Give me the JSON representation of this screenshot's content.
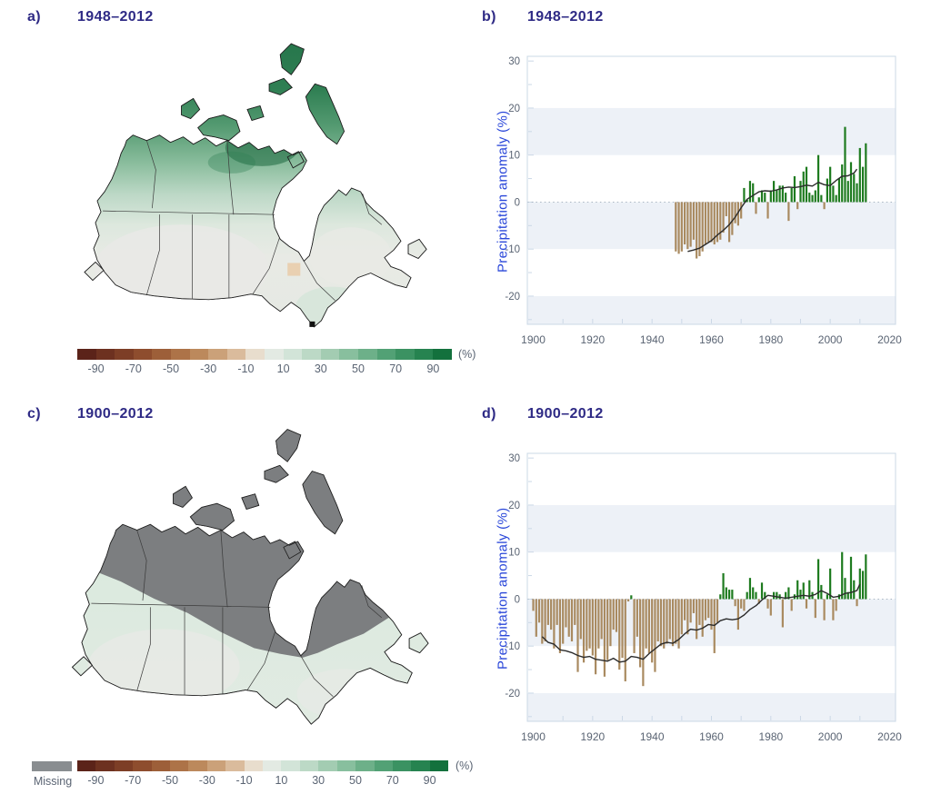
{
  "figure": {
    "panels": [
      {
        "id": "a",
        "label": "a)",
        "period": "1948–2012",
        "type": "map"
      },
      {
        "id": "b",
        "label": "b)",
        "period": "1948–2012",
        "type": "bar-chart"
      },
      {
        "id": "c",
        "label": "c)",
        "period": "1900–2012",
        "type": "map"
      },
      {
        "id": "d",
        "label": "d)",
        "period": "1900–2012",
        "type": "bar-chart"
      }
    ]
  },
  "axis": {
    "y_label": "Precipitation anomaly (%)"
  },
  "colorbar": {
    "tick_labels": [
      "-90",
      "-70",
      "-50",
      "-30",
      "-10",
      "10",
      "30",
      "50",
      "70",
      "90"
    ],
    "unit_label": "(%)",
    "missing_label": "Missing",
    "missing_color": "#898d90",
    "segments": [
      "#5b2319",
      "#6d3120",
      "#7d3e26",
      "#8e4d2e",
      "#9d5f39",
      "#ad7348",
      "#bc895c",
      "#cba179",
      "#dabb9c",
      "#e8ddcd",
      "#e3eae3",
      "#d2e4d8",
      "#bcd9c6",
      "#a3ccb2",
      "#88bf9e",
      "#6db089",
      "#52a175",
      "#3b9262",
      "#268350",
      "#13713d"
    ]
  },
  "colors": {
    "positive_bar": "#1e7b1f",
    "negative_bar": "#a98a60",
    "trend_line": "#2b2b2b",
    "band_fill": "#edf1f7",
    "plot_border": "#cbd8e6",
    "tick_text": "#5a6473",
    "zero_line": "#a9b5c2",
    "title": "#2e2a85",
    "axis_label_blue": "#2946d9",
    "map_missing_gray": "#7c7e80",
    "map_dark_green": "#25744a",
    "map_pale": "#e6e8e2"
  },
  "chart_data": [
    {
      "id": "chart-b",
      "type": "bar",
      "title": "1948–2012",
      "xlabel": "",
      "ylabel": "Precipitation anomaly (%)",
      "xlim": [
        1898,
        2022
      ],
      "ylim": [
        -26,
        31
      ],
      "x_ticks": [
        1900,
        1920,
        1940,
        1960,
        1980,
        2000,
        2020
      ],
      "y_ticks": [
        30,
        20,
        10,
        0,
        -10,
        -20
      ],
      "bands": [
        [
          10,
          20
        ],
        [
          -10,
          0
        ],
        [
          -26,
          -20
        ]
      ],
      "grid": "banded-horizontal",
      "legend_position": "none",
      "x": [
        1948,
        1949,
        1950,
        1951,
        1952,
        1953,
        1954,
        1955,
        1956,
        1957,
        1958,
        1959,
        1960,
        1961,
        1962,
        1963,
        1964,
        1965,
        1966,
        1967,
        1968,
        1969,
        1970,
        1971,
        1972,
        1973,
        1974,
        1975,
        1976,
        1977,
        1978,
        1979,
        1980,
        1981,
        1982,
        1983,
        1984,
        1985,
        1986,
        1987,
        1988,
        1989,
        1990,
        1991,
        1992,
        1993,
        1994,
        1995,
        1996,
        1997,
        1998,
        1999,
        2000,
        2001,
        2002,
        2003,
        2004,
        2005,
        2006,
        2007,
        2008,
        2009,
        2010,
        2011,
        2012
      ],
      "values": [
        -10.5,
        -11,
        -10.5,
        -9,
        -10,
        -9.5,
        -8,
        -12,
        -11.5,
        -10.5,
        -9,
        -8.5,
        -8.5,
        -9,
        -8.5,
        -8,
        -6.5,
        -3,
        -8.5,
        -7,
        -4.5,
        -5,
        -3.5,
        3,
        0.5,
        4.5,
        4,
        -2.5,
        1,
        2.5,
        2,
        -3.5,
        2.5,
        4.5,
        2.5,
        3.5,
        3.5,
        2,
        -4,
        3,
        5.5,
        -1.5,
        4.5,
        6.5,
        7.5,
        2,
        1.5,
        2.5,
        10,
        1.5,
        -1.5,
        5,
        7.5,
        3.5,
        1.5,
        5,
        8,
        16,
        4.5,
        8.5,
        6,
        4,
        11.5,
        7.5,
        12.5
      ],
      "trend": {
        "x": [
          1952,
          1954,
          1956,
          1958,
          1960,
          1962,
          1964,
          1966,
          1968,
          1970,
          1972,
          1974,
          1976,
          1978,
          1980,
          1982,
          1984,
          1986,
          1988,
          1990,
          1992,
          1994,
          1996,
          1998,
          2000,
          2002,
          2004,
          2006,
          2008,
          2009
        ],
        "y": [
          -10.5,
          -10.2,
          -9.8,
          -9,
          -8.2,
          -7,
          -6,
          -4.8,
          -3.2,
          -1.2,
          0.6,
          1.4,
          2.2,
          2.4,
          2.3,
          2.6,
          3,
          3.2,
          3.1,
          3.3,
          3.6,
          3.4,
          4.2,
          3.7,
          3.5,
          4.6,
          5.5,
          5.6,
          6.2,
          7
        ]
      }
    },
    {
      "id": "chart-d",
      "type": "bar",
      "title": "1900–2012",
      "xlabel": "",
      "ylabel": "Precipitation anomaly (%)",
      "xlim": [
        1898,
        2022
      ],
      "ylim": [
        -26,
        31
      ],
      "x_ticks": [
        1900,
        1920,
        1940,
        1960,
        1980,
        2000,
        2020
      ],
      "y_ticks": [
        30,
        20,
        10,
        0,
        -10,
        -20
      ],
      "bands": [
        [
          10,
          20
        ],
        [
          -10,
          0
        ],
        [
          -26,
          -20
        ]
      ],
      "grid": "banded-horizontal",
      "legend_position": "none",
      "x": [
        1900,
        1901,
        1902,
        1903,
        1904,
        1905,
        1906,
        1907,
        1908,
        1909,
        1910,
        1911,
        1912,
        1913,
        1914,
        1915,
        1916,
        1917,
        1918,
        1919,
        1920,
        1921,
        1922,
        1923,
        1924,
        1925,
        1926,
        1927,
        1928,
        1929,
        1930,
        1931,
        1932,
        1933,
        1934,
        1935,
        1936,
        1937,
        1938,
        1939,
        1940,
        1941,
        1942,
        1943,
        1944,
        1945,
        1946,
        1947,
        1948,
        1949,
        1950,
        1951,
        1952,
        1953,
        1954,
        1955,
        1956,
        1957,
        1958,
        1959,
        1960,
        1961,
        1962,
        1963,
        1964,
        1965,
        1966,
        1967,
        1968,
        1969,
        1970,
        1971,
        1972,
        1973,
        1974,
        1975,
        1976,
        1977,
        1978,
        1979,
        1980,
        1981,
        1982,
        1983,
        1984,
        1985,
        1986,
        1987,
        1988,
        1989,
        1990,
        1991,
        1992,
        1993,
        1994,
        1995,
        1996,
        1997,
        1998,
        1999,
        2000,
        2001,
        2002,
        2003,
        2004,
        2005,
        2006,
        2007,
        2008,
        2009,
        2010,
        2011,
        2012
      ],
      "values": [
        -2.5,
        -8,
        -5,
        -9.5,
        -9,
        -5.5,
        -6.5,
        -10.5,
        -5.5,
        -11.5,
        -9.5,
        -6,
        -8,
        -9,
        -5.5,
        -15.5,
        -8.5,
        -13.5,
        -11,
        -10.5,
        -12,
        -16,
        -10.5,
        -8.5,
        -16.5,
        -13,
        -10,
        -6.5,
        -7,
        -15,
        -12.5,
        -17.5,
        -0.5,
        0.8,
        -11.5,
        -8,
        -14.5,
        -18.5,
        -10.5,
        -11.5,
        -13.5,
        -15.5,
        -9,
        -10,
        -10.5,
        -9.5,
        -8.5,
        -10,
        -9.5,
        -10.5,
        -7.5,
        -4.5,
        -7.5,
        -5,
        -3,
        -8.5,
        -5.5,
        -8,
        -4.5,
        -4,
        -6.5,
        -11.5,
        -5,
        1,
        5.5,
        2.5,
        2,
        2,
        -1.5,
        -6.5,
        -2,
        -2.5,
        1.5,
        4.5,
        2.5,
        1.5,
        -1,
        3.5,
        1.5,
        -2,
        -3.5,
        1.5,
        1.5,
        1,
        -6,
        1.5,
        2.5,
        -2.5,
        1,
        4,
        2,
        3.5,
        -2,
        4,
        1.5,
        -4,
        8.5,
        3,
        -4.5,
        1,
        6.5,
        -4.5,
        -2.5,
        1,
        10,
        4.5,
        1.5,
        9,
        4,
        -1.5,
        6.5,
        6,
        9.5
      ],
      "trend": {
        "x": [
          1903,
          1905,
          1907,
          1909,
          1911,
          1913,
          1915,
          1917,
          1919,
          1921,
          1923,
          1925,
          1927,
          1929,
          1931,
          1933,
          1935,
          1937,
          1939,
          1941,
          1943,
          1945,
          1947,
          1949,
          1951,
          1953,
          1955,
          1957,
          1959,
          1961,
          1963,
          1965,
          1967,
          1969,
          1971,
          1973,
          1975,
          1977,
          1979,
          1981,
          1983,
          1985,
          1987,
          1989,
          1991,
          1993,
          1995,
          1997,
          1999,
          2001,
          2003,
          2005,
          2007,
          2009,
          2010
        ],
        "y": [
          -8,
          -9.2,
          -9.6,
          -10.8,
          -11,
          -11.4,
          -12,
          -12.4,
          -12.2,
          -12.8,
          -13,
          -13.2,
          -12.6,
          -13.4,
          -13.2,
          -12.2,
          -12.4,
          -12.8,
          -11.6,
          -10.6,
          -9.6,
          -9.2,
          -9.4,
          -8.6,
          -7.4,
          -6.4,
          -6.6,
          -6.2,
          -5.4,
          -5.6,
          -4.6,
          -4.2,
          -4.4,
          -4.2,
          -3.4,
          -2.2,
          -1.4,
          -0.2,
          0.8,
          0.6,
          0.4,
          0.2,
          0.4,
          0.6,
          0.8,
          0.6,
          1,
          1.8,
          1.2,
          0.4,
          0.6,
          1.2,
          1.4,
          1.8,
          3.2
        ]
      }
    }
  ]
}
